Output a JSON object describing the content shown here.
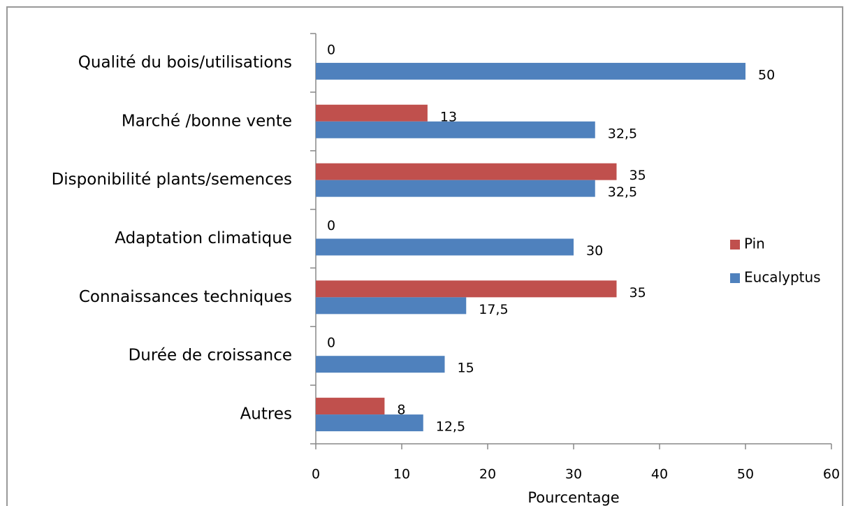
{
  "chart_data": {
    "type": "hbar",
    "xlabel": "Pourcentage",
    "categories": [
      "Qualité du bois/utilisations",
      "Marché /bonne vente",
      "Disponibilité plants/semences",
      "Adaptation climatique",
      "Connaissances techniques",
      "Durée de croissance",
      "Autres"
    ],
    "series": [
      {
        "name": "Pin",
        "color": "#c0504d",
        "values": [
          0,
          13,
          35,
          0,
          35,
          0,
          8
        ]
      },
      {
        "name": "Eucalyptus",
        "color": "#4f81bd",
        "values": [
          50,
          32.5,
          32.5,
          30,
          17.5,
          15,
          12.5
        ],
        "value_labels": [
          "50",
          "32,5",
          "32,5",
          "30",
          "17,5",
          "15",
          "12,5"
        ]
      }
    ],
    "xlim": [
      0,
      60
    ],
    "xticks": [
      0,
      10,
      20,
      30,
      40,
      50,
      60
    ],
    "legend": "right"
  }
}
